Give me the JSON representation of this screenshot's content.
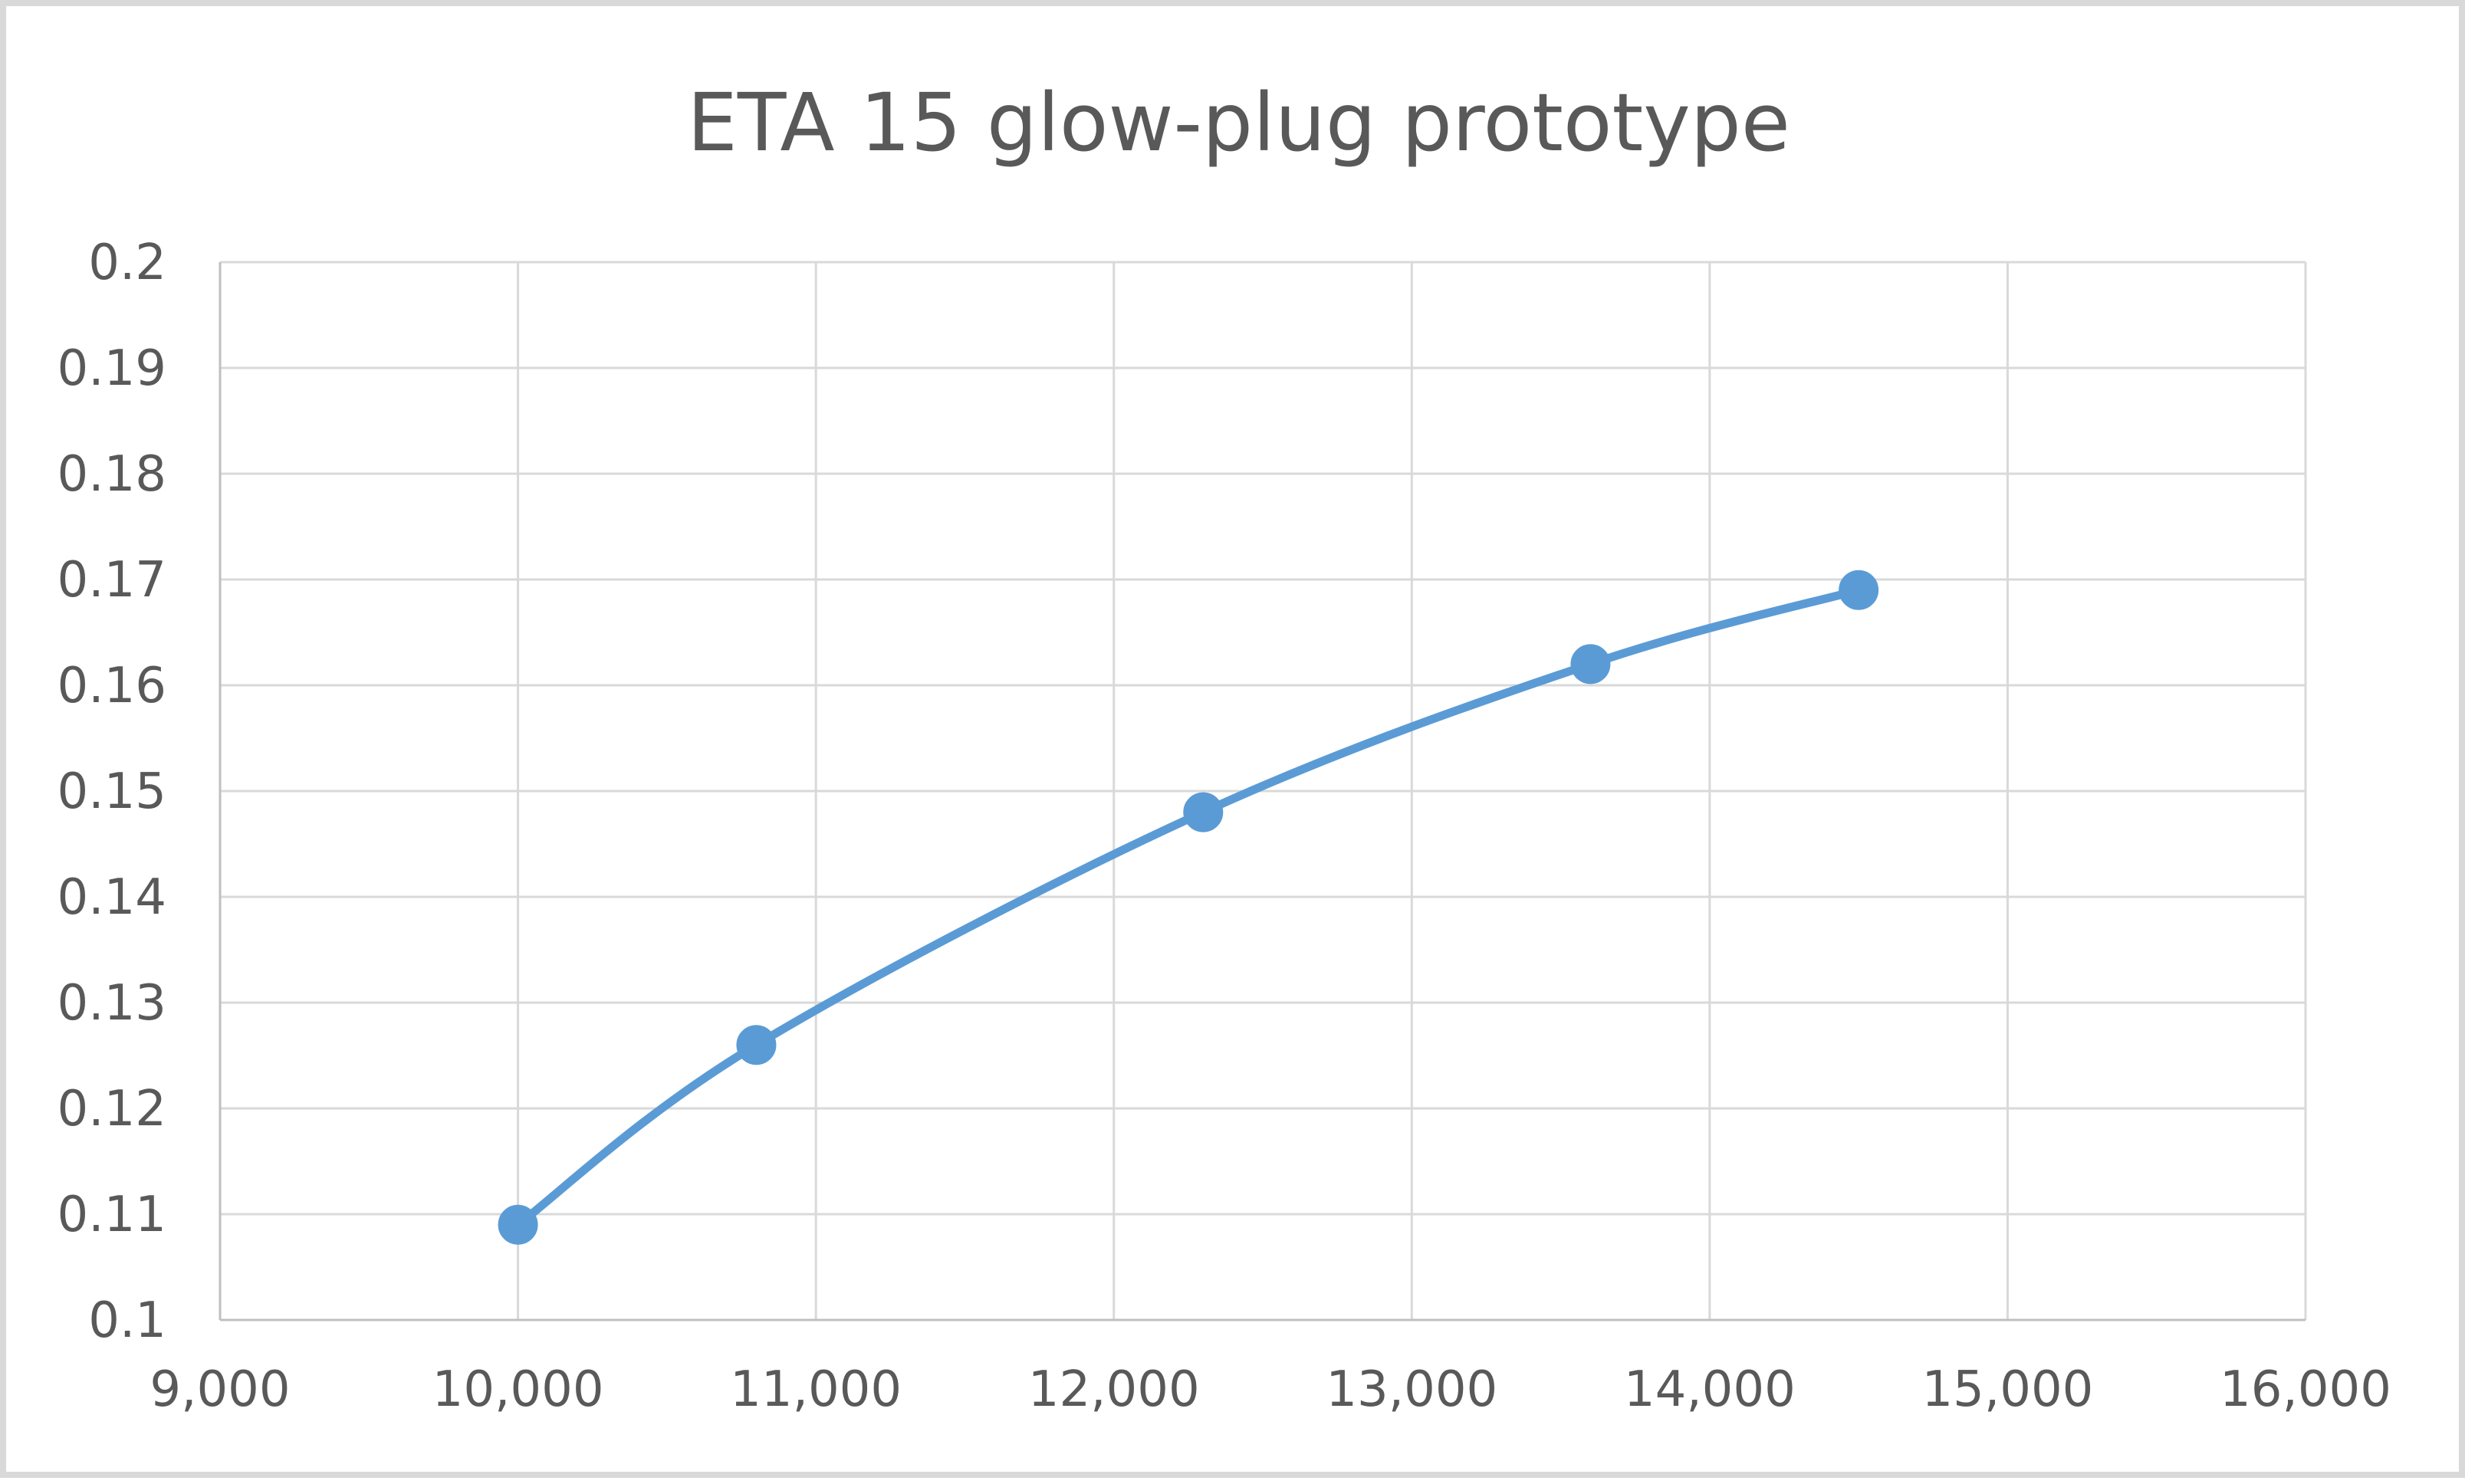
{
  "chart_data": {
    "type": "scatter",
    "title": "ETA 15 glow-plug prototype",
    "xlabel": "",
    "ylabel": "",
    "xlim": [
      9000,
      16000
    ],
    "ylim": [
      0.1,
      0.2
    ],
    "x_ticks": [
      "9,000",
      "10,000",
      "11,000",
      "12,000",
      "13,000",
      "14,000",
      "15,000",
      "16,000"
    ],
    "y_ticks": [
      "0.1",
      "0.11",
      "0.12",
      "0.13",
      "0.14",
      "0.15",
      "0.16",
      "0.17",
      "0.18",
      "0.19",
      "0.2"
    ],
    "grid": true,
    "series": [
      {
        "color": "#5b9bd5",
        "marker": "circle",
        "line": "smooth",
        "x": [
          10000,
          10800,
          12300,
          13600,
          14500
        ],
        "y": [
          0.109,
          0.126,
          0.148,
          0.162,
          0.169
        ]
      }
    ]
  }
}
